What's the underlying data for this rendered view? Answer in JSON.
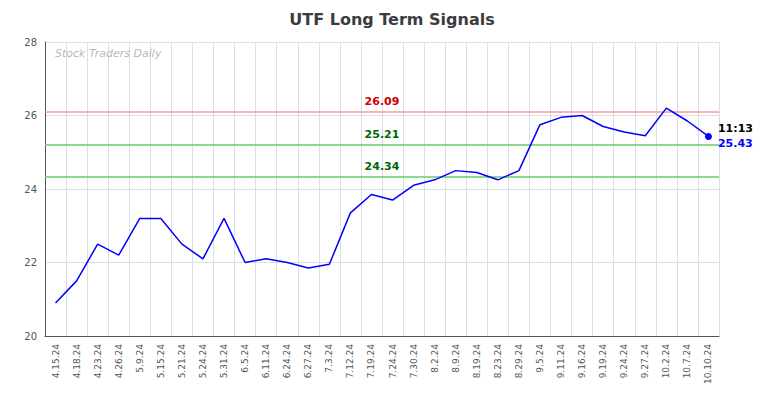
{
  "chart_data": {
    "type": "line",
    "title": "UTF Long Term Signals",
    "categories": [
      "4.15.24",
      "4.18.24",
      "4.23.24",
      "4.26.24",
      "5.9.24",
      "5.15.24",
      "5.21.24",
      "5.24.24",
      "5.31.24",
      "6.5.24",
      "6.11.24",
      "6.24.24",
      "6.27.24",
      "7.3.24",
      "7.12.24",
      "7.19.24",
      "7.24.24",
      "7.30.24",
      "8.2.24",
      "8.9.24",
      "8.19.24",
      "8.23.24",
      "8.29.24",
      "9.5.24",
      "9.11.24",
      "9.16.24",
      "9.19.24",
      "9.24.24",
      "9.27.24",
      "10.2.24",
      "10.7.24",
      "10.10.24"
    ],
    "values": [
      20.9,
      21.5,
      22.5,
      22.2,
      23.2,
      23.2,
      22.5,
      22.1,
      23.2,
      22.0,
      22.1,
      22.0,
      21.85,
      21.95,
      23.35,
      23.85,
      23.7,
      24.1,
      24.25,
      24.5,
      24.45,
      24.25,
      24.5,
      25.75,
      25.95,
      26.0,
      25.7,
      25.55,
      25.45,
      26.2,
      25.85,
      25.43
    ],
    "color": "blue",
    "ylim": [
      20,
      28
    ],
    "yticks": [
      20,
      22,
      24,
      26,
      28
    ],
    "grid": true,
    "hlines": [
      {
        "value": 26.09,
        "label": "26.09",
        "color": "#ff9999",
        "label_color": "#cc0000"
      },
      {
        "value": 25.21,
        "label": "25.21",
        "color": "#66cc66",
        "label_color": "#006600"
      },
      {
        "value": 24.34,
        "label": "24.34",
        "color": "#66cc66",
        "label_color": "#006600"
      }
    ],
    "last_point_labels": [
      {
        "text": "11:13",
        "color": "black"
      },
      {
        "text": "25.43",
        "color": "blue"
      }
    ],
    "watermark": {
      "text": "Stock Traders Daily",
      "color": "#aaaaaa"
    }
  }
}
